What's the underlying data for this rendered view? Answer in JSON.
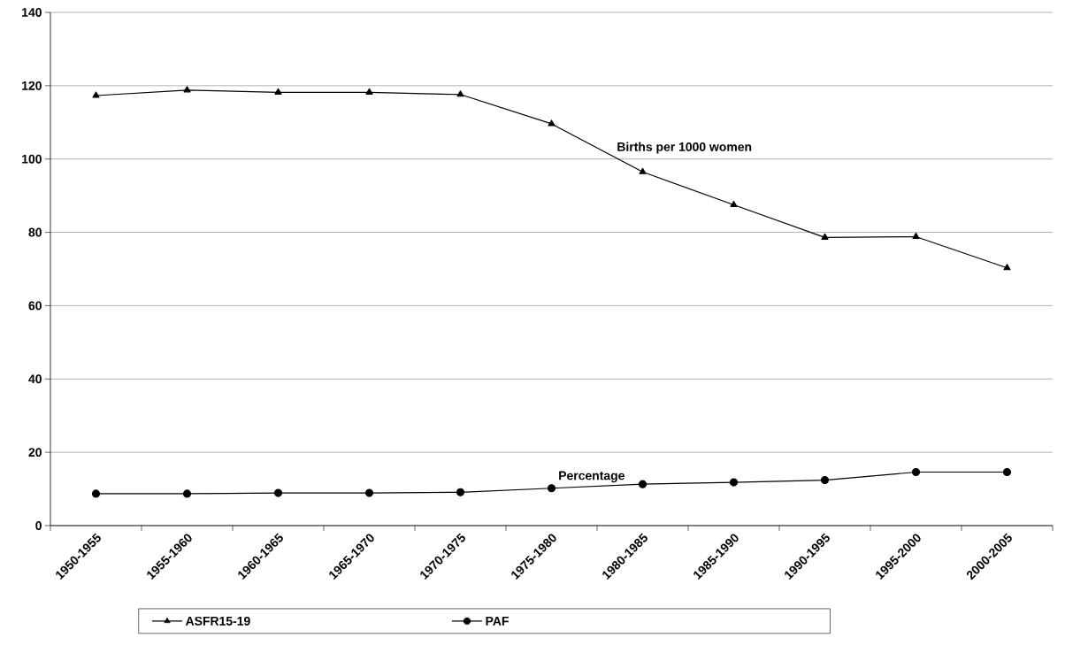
{
  "chart_data": {
    "type": "line",
    "categories": [
      "1950-1955",
      "1955-1960",
      "1960-1965",
      "1965-1970",
      "1970-1975",
      "1975-1980",
      "1980-1985",
      "1985-1990",
      "1990-1995",
      "1995-2000",
      "2000-2005"
    ],
    "series": [
      {
        "name": "ASFR15-19",
        "color": "#000000",
        "marker": "triangle",
        "values": [
          117.3,
          118.8,
          118.2,
          118.2,
          117.6,
          109.6,
          96.5,
          87.5,
          78.6,
          78.8,
          70.3
        ]
      },
      {
        "name": "PAF",
        "color": "#000000",
        "marker": "circle",
        "values": [
          8.7,
          8.7,
          8.9,
          8.9,
          9.1,
          10.2,
          11.3,
          11.8,
          12.4,
          14.6,
          14.6
        ]
      }
    ],
    "ylim": [
      0,
      140
    ],
    "yticks": [
      0,
      20,
      40,
      60,
      80,
      100,
      120,
      140
    ],
    "grid": "y",
    "legend": "bottom",
    "line_style": "solid",
    "annotations": [
      "Births per 1000 women",
      "Percentage"
    ]
  }
}
